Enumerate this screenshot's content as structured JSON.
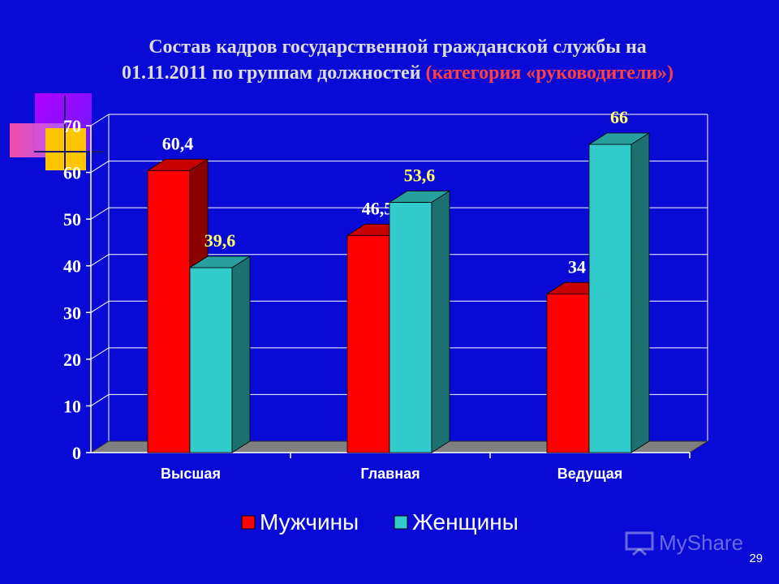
{
  "title": {
    "line1": "Состав кадров государственной гражданской службы на",
    "line2": "01.11.2011 по группам должностей",
    "accent": "(категория «руководители»)"
  },
  "slide_number": "29",
  "watermark": "MyShare",
  "colors": {
    "background": "#0a0ad6",
    "men": "#ff0000",
    "women": "#33cccc",
    "men_label": "#ffffff",
    "women_label": "#ffff66"
  },
  "chart_data": {
    "type": "bar",
    "categories": [
      "Высшая",
      "Главная",
      "Ведущая"
    ],
    "series": [
      {
        "name": "Мужчины",
        "values": [
          60.4,
          46.5,
          34
        ],
        "labels": [
          "60,4",
          "46,5",
          "34"
        ]
      },
      {
        "name": "Женщины",
        "values": [
          39.6,
          53.6,
          66
        ],
        "labels": [
          "39,6",
          "53,6",
          "66"
        ]
      }
    ],
    "ylim": [
      0,
      70
    ],
    "yticks": [
      0,
      10,
      20,
      30,
      40,
      50,
      60,
      70
    ],
    "grid": true,
    "legend": "bottom",
    "style": "3d-clustered-bar"
  }
}
